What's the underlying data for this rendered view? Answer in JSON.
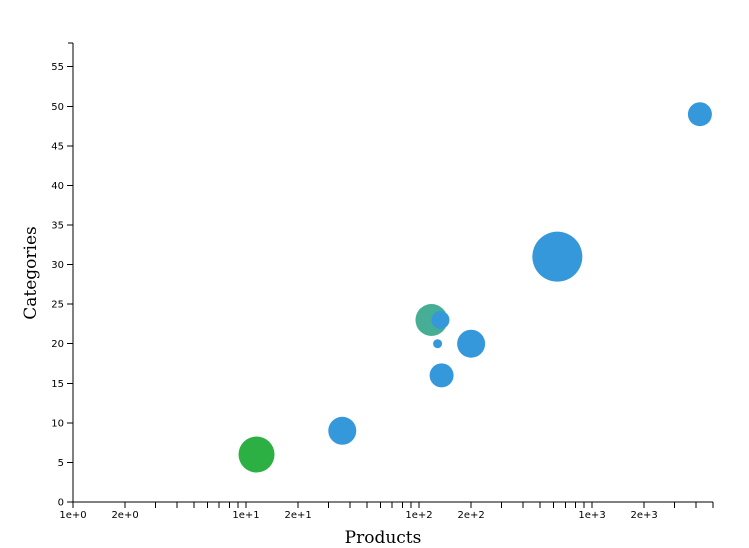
{
  "chart_data": {
    "type": "scatter",
    "bubble": true,
    "title": "",
    "xlabel": "Products",
    "ylabel": "Categories",
    "x_scale": "log",
    "xlim": [
      1,
      5000
    ],
    "ylim": [
      0,
      58
    ],
    "grid": false,
    "x_tick_labels": [
      {
        "value": 1,
        "label": "1e+0"
      },
      {
        "value": 2,
        "label": "2e+0"
      },
      {
        "value": 10,
        "label": "1e+1"
      },
      {
        "value": 20,
        "label": "2e+1"
      },
      {
        "value": 100,
        "label": "1e+2"
      },
      {
        "value": 200,
        "label": "2e+2"
      },
      {
        "value": 1000,
        "label": "1e+3"
      },
      {
        "value": 2000,
        "label": "2e+3"
      }
    ],
    "y_ticks": [
      0,
      5,
      10,
      15,
      20,
      25,
      30,
      35,
      40,
      45,
      50,
      55
    ],
    "colors": {
      "blue": "#3498db",
      "green": "#2db043",
      "teal": "#45ae94"
    },
    "points": [
      {
        "x": 11.5,
        "y": 6,
        "size": 18,
        "color": "#2db043"
      },
      {
        "x": 36,
        "y": 9,
        "size": 14,
        "color": "#3498db"
      },
      {
        "x": 135,
        "y": 16,
        "size": 12,
        "color": "#3498db"
      },
      {
        "x": 200,
        "y": 20,
        "size": 14,
        "color": "#3498db"
      },
      {
        "x": 128,
        "y": 20,
        "size": 4.5,
        "color": "#3498db"
      },
      {
        "x": 118,
        "y": 23,
        "size": 16,
        "color": "#45ae94"
      },
      {
        "x": 133,
        "y": 23,
        "size": 9,
        "color": "#3498db"
      },
      {
        "x": 630,
        "y": 31,
        "size": 25,
        "color": "#3498db"
      },
      {
        "x": 4200,
        "y": 49,
        "size": 12,
        "color": "#3498db"
      }
    ]
  }
}
